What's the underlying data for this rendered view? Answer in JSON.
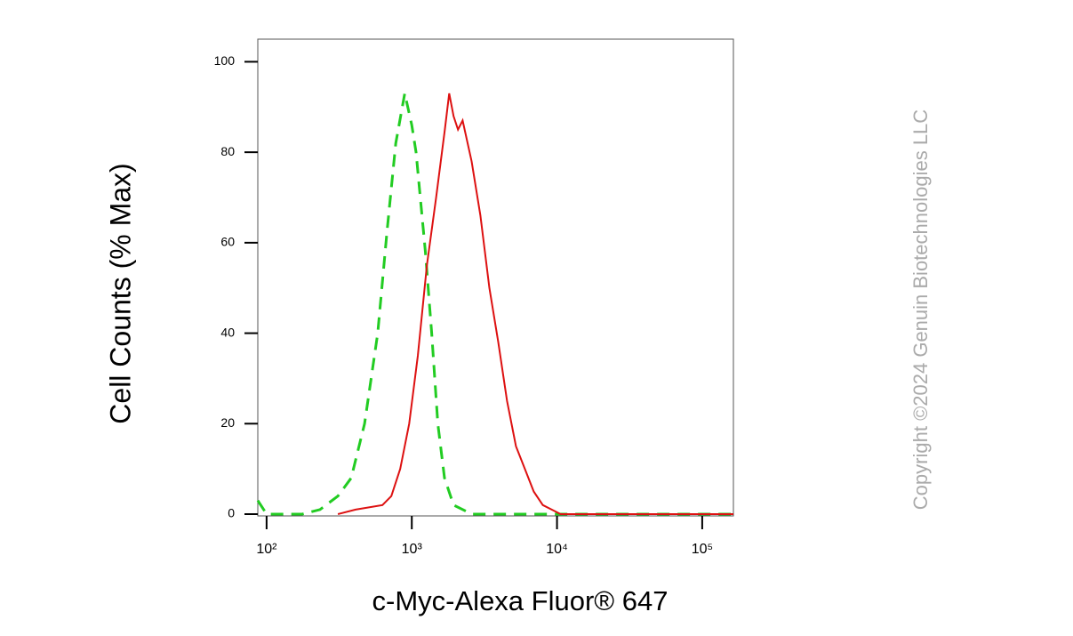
{
  "chart_data": {
    "type": "line",
    "xlabel": "c-Myc-Alexa Fluor® 647",
    "ylabel": "Cell Counts (% Max)",
    "watermark": "Copyright ©2024 Genuin Biotechnologies LLC",
    "xscale": "log",
    "xlim": [
      87,
      164000
    ],
    "ylim": [
      0,
      105
    ],
    "xticks": [
      {
        "value": 100,
        "label": "10²"
      },
      {
        "value": 1000,
        "label": "10³"
      },
      {
        "value": 10000,
        "label": "10⁴"
      },
      {
        "value": 100000,
        "label": "10⁵"
      }
    ],
    "yticks": [
      0,
      20,
      40,
      60,
      80,
      100
    ],
    "series": [
      {
        "color": "#22cc22",
        "line_style": "dashed",
        "x": [
          87,
          100,
          176,
          233,
          310,
          383,
          473,
          583,
          673,
          776,
          894,
          1000,
          1070,
          1240,
          1370,
          1510,
          1680,
          1940,
          2600,
          6900,
          164000
        ],
        "values": [
          3,
          0,
          0,
          1,
          4,
          8,
          20,
          40,
          62,
          82,
          93,
          86,
          80,
          58,
          40,
          20,
          8,
          2,
          0,
          0,
          0
        ]
      },
      {
        "color": "#dd1111",
        "line_style": "solid",
        "x": [
          310,
          410,
          628,
          723,
          832,
          959,
          1100,
          1270,
          1470,
          1690,
          1810,
          1940,
          2080,
          2240,
          2580,
          2970,
          3420,
          3940,
          4530,
          5220,
          6010,
          6920,
          7980,
          9190,
          10600,
          164000
        ],
        "values": [
          0,
          1,
          2,
          4,
          10,
          20,
          35,
          55,
          70,
          85,
          93,
          88,
          85,
          87,
          78,
          66,
          50,
          38,
          25,
          15,
          10,
          5,
          2,
          1,
          0,
          0
        ]
      }
    ]
  }
}
